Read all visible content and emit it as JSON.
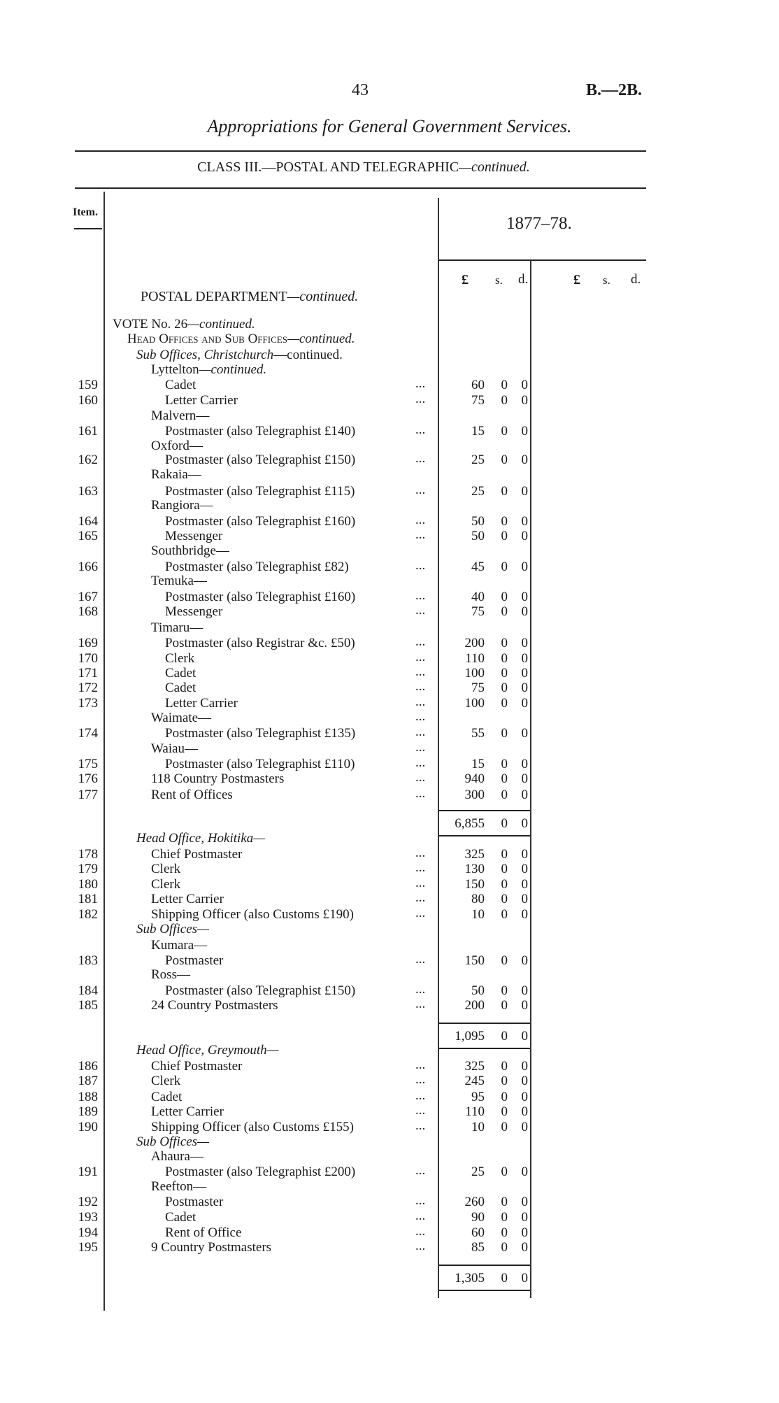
{
  "header": {
    "page_number": "43",
    "doc_ref": "B.—2B.",
    "title": "Appropriations for General Government Services.",
    "class_title": "CLASS III.—POSTAL AND TELEGRAPHIC",
    "class_suffix": "—continued."
  },
  "table": {
    "item_header": "Item.",
    "year": "1877–78.",
    "currency_headers": [
      "£",
      "s.",
      "d.",
      "£",
      "s.",
      "d."
    ],
    "department": "POSTAL DEPARTMENT",
    "department_suffix": "—continued.",
    "rows": [
      {
        "level": 0,
        "parts": [
          {
            "t": "VOTE No. 26"
          },
          {
            "t": "—continued.",
            "s": "it"
          }
        ]
      },
      {
        "level": 1,
        "parts": [
          {
            "t": "Head Offices and Sub Offices",
            "s": "sc"
          },
          {
            "t": "—continued.",
            "s": "it"
          }
        ]
      },
      {
        "level": 2,
        "parts": [
          {
            "t": "Sub Offices, Christchurch",
            "s": "it"
          },
          {
            "t": "—continued."
          }
        ]
      },
      {
        "level": 3,
        "parts": [
          {
            "t": "Lyttelton"
          },
          {
            "t": "—continued.",
            "s": "it"
          }
        ]
      },
      {
        "item": "159",
        "level": 4,
        "parts": [
          {
            "t": "Cadet"
          }
        ],
        "dots": "...",
        "pounds": "60",
        "s": "0",
        "d": "0"
      },
      {
        "item": "160",
        "level": 4,
        "parts": [
          {
            "t": "Letter Carrier"
          }
        ],
        "dots": "...",
        "pounds": "75",
        "s": "0",
        "d": "0"
      },
      {
        "level": 3,
        "parts": [
          {
            "t": "Malvern—"
          }
        ]
      },
      {
        "item": "161",
        "level": 4,
        "parts": [
          {
            "t": "Postmaster (also Telegraphist £140)"
          }
        ],
        "dots": "...",
        "pounds": "15",
        "s": "0",
        "d": "0"
      },
      {
        "level": 3,
        "parts": [
          {
            "t": "Oxford—"
          }
        ]
      },
      {
        "item": "162",
        "level": 4,
        "parts": [
          {
            "t": "Postmaster (also Telegraphist £150)"
          }
        ],
        "dots": "...",
        "pounds": "25",
        "s": "0",
        "d": "0"
      },
      {
        "level": 3,
        "parts": [
          {
            "t": "Rakaia—"
          }
        ]
      },
      {
        "item": "163",
        "level": 4,
        "parts": [
          {
            "t": "Postmaster (also Telegraphist £115)"
          }
        ],
        "dots": "...",
        "pounds": "25",
        "s": "0",
        "d": "0"
      },
      {
        "level": 3,
        "parts": [
          {
            "t": "Rangiora—"
          }
        ]
      },
      {
        "item": "164",
        "level": 4,
        "parts": [
          {
            "t": "Postmaster (also Telegraphist £160)"
          }
        ],
        "dots": "...",
        "pounds": "50",
        "s": "0",
        "d": "0"
      },
      {
        "item": "165",
        "level": 4,
        "parts": [
          {
            "t": "Messenger"
          }
        ],
        "dots": "...",
        "pounds": "50",
        "s": "0",
        "d": "0"
      },
      {
        "level": 3,
        "parts": [
          {
            "t": "Southbridge—"
          }
        ]
      },
      {
        "item": "166",
        "level": 4,
        "parts": [
          {
            "t": "Postmaster (also Telegraphist £82)"
          }
        ],
        "dots": "...",
        "pounds": "45",
        "s": "0",
        "d": "0"
      },
      {
        "level": 3,
        "parts": [
          {
            "t": "Temuka—"
          }
        ]
      },
      {
        "item": "167",
        "level": 4,
        "parts": [
          {
            "t": "Postmaster (also Telegraphist £160)"
          }
        ],
        "dots": "...",
        "pounds": "40",
        "s": "0",
        "d": "0"
      },
      {
        "item": "168",
        "level": 4,
        "parts": [
          {
            "t": "Messenger"
          }
        ],
        "dots": "...",
        "pounds": "75",
        "s": "0",
        "d": "0"
      },
      {
        "level": 3,
        "parts": [
          {
            "t": "Timaru—"
          }
        ]
      },
      {
        "item": "169",
        "level": 4,
        "parts": [
          {
            "t": "Postmaster (also Registrar &c. £50)"
          }
        ],
        "dots": "...",
        "pounds": "200",
        "s": "0",
        "d": "0"
      },
      {
        "item": "170",
        "level": 4,
        "parts": [
          {
            "t": "Clerk"
          }
        ],
        "dots": "...",
        "pounds": "110",
        "s": "0",
        "d": "0"
      },
      {
        "item": "171",
        "level": 4,
        "parts": [
          {
            "t": "Cadet"
          }
        ],
        "dots": "...",
        "pounds": "100",
        "s": "0",
        "d": "0"
      },
      {
        "item": "172",
        "level": 4,
        "parts": [
          {
            "t": "Cadet"
          }
        ],
        "dots": "...",
        "pounds": "75",
        "s": "0",
        "d": "0"
      },
      {
        "item": "173",
        "level": 4,
        "parts": [
          {
            "t": "Letter Carrier"
          }
        ],
        "dots": "...",
        "pounds": "100",
        "s": "0",
        "d": "0"
      },
      {
        "level": 3,
        "parts": [
          {
            "t": "Waimate—"
          }
        ],
        "dots": "..."
      },
      {
        "item": "174",
        "level": 4,
        "parts": [
          {
            "t": "Postmaster (also Telegraphist £135)"
          }
        ],
        "dots": "...",
        "pounds": "55",
        "s": "0",
        "d": "0"
      },
      {
        "level": 3,
        "parts": [
          {
            "t": "Waiau—"
          }
        ],
        "dots": "..."
      },
      {
        "item": "175",
        "level": 4,
        "parts": [
          {
            "t": "Postmaster (also Telegraphist £110)"
          }
        ],
        "dots": "...",
        "pounds": "15",
        "s": "0",
        "d": "0"
      },
      {
        "item": "176",
        "level": 3,
        "parts": [
          {
            "t": "118 Country Postmasters"
          }
        ],
        "dots": "...",
        "pounds": "940",
        "s": "0",
        "d": "0"
      },
      {
        "item": "177",
        "level": 3,
        "parts": [
          {
            "t": "Rent of Offices"
          }
        ],
        "dots": "...",
        "pounds": "300",
        "s": "0",
        "d": "0"
      },
      {
        "total": true,
        "pounds": "6,855",
        "s": "0",
        "d": "0"
      },
      {
        "level": 2,
        "parts": [
          {
            "t": "Head Office, Hokitika—",
            "s": "it"
          }
        ]
      },
      {
        "item": "178",
        "level": 3,
        "parts": [
          {
            "t": "Chief Postmaster"
          }
        ],
        "dots": "...",
        "pounds": "325",
        "s": "0",
        "d": "0"
      },
      {
        "item": "179",
        "level": 3,
        "parts": [
          {
            "t": "Clerk"
          }
        ],
        "dots": "...",
        "pounds": "130",
        "s": "0",
        "d": "0"
      },
      {
        "item": "180",
        "level": 3,
        "parts": [
          {
            "t": "Clerk"
          }
        ],
        "dots": "...",
        "pounds": "150",
        "s": "0",
        "d": "0"
      },
      {
        "item": "181",
        "level": 3,
        "parts": [
          {
            "t": "Letter Carrier"
          }
        ],
        "dots": "...",
        "pounds": "80",
        "s": "0",
        "d": "0"
      },
      {
        "item": "182",
        "level": 3,
        "parts": [
          {
            "t": "Shipping Officer (also Customs £190)"
          }
        ],
        "dots": "...",
        "pounds": "10",
        "s": "0",
        "d": "0"
      },
      {
        "level": 2,
        "parts": [
          {
            "t": "Sub Offices—",
            "s": "it"
          }
        ]
      },
      {
        "level": 3,
        "parts": [
          {
            "t": "Kumara—"
          }
        ]
      },
      {
        "item": "183",
        "level": 4,
        "parts": [
          {
            "t": "Postmaster"
          }
        ],
        "dots": "...",
        "pounds": "150",
        "s": "0",
        "d": "0"
      },
      {
        "level": 3,
        "parts": [
          {
            "t": "Ross—"
          }
        ]
      },
      {
        "item": "184",
        "level": 4,
        "parts": [
          {
            "t": "Postmaster (also Telegraphist £150)"
          }
        ],
        "dots": "...",
        "pounds": "50",
        "s": "0",
        "d": "0"
      },
      {
        "item": "185",
        "level": 3,
        "parts": [
          {
            "t": "24 Country Postmasters"
          }
        ],
        "dots": "...",
        "pounds": "200",
        "s": "0",
        "d": "0"
      },
      {
        "total": true,
        "pounds": "1,095",
        "s": "0",
        "d": "0"
      },
      {
        "level": 2,
        "parts": [
          {
            "t": "Head Office, Greymouth—",
            "s": "it"
          }
        ]
      },
      {
        "item": "186",
        "level": 3,
        "parts": [
          {
            "t": "Chief Postmaster"
          }
        ],
        "dots": "...",
        "pounds": "325",
        "s": "0",
        "d": "0"
      },
      {
        "item": "187",
        "level": 3,
        "parts": [
          {
            "t": "Clerk"
          }
        ],
        "dots": "...",
        "pounds": "245",
        "s": "0",
        "d": "0"
      },
      {
        "item": "188",
        "level": 3,
        "parts": [
          {
            "t": "Cadet"
          }
        ],
        "dots": "...",
        "pounds": "95",
        "s": "0",
        "d": "0"
      },
      {
        "item": "189",
        "level": 3,
        "parts": [
          {
            "t": "Letter Carrier"
          }
        ],
        "dots": "...",
        "pounds": "110",
        "s": "0",
        "d": "0"
      },
      {
        "item": "190",
        "level": 3,
        "parts": [
          {
            "t": "Shipping Officer (also Customs £155)"
          }
        ],
        "dots": "...",
        "pounds": "10",
        "s": "0",
        "d": "0"
      },
      {
        "level": 2,
        "parts": [
          {
            "t": "Sub Offices—",
            "s": "it"
          }
        ]
      },
      {
        "level": 3,
        "parts": [
          {
            "t": "Ahaura—"
          }
        ]
      },
      {
        "item": "191",
        "level": 4,
        "parts": [
          {
            "t": "Postmaster (also Telegraphist £200)"
          }
        ],
        "dots": "...",
        "pounds": "25",
        "s": "0",
        "d": "0"
      },
      {
        "level": 3,
        "parts": [
          {
            "t": "Reefton—"
          }
        ]
      },
      {
        "item": "192",
        "level": 4,
        "parts": [
          {
            "t": "Postmaster"
          }
        ],
        "dots": "...",
        "pounds": "260",
        "s": "0",
        "d": "0"
      },
      {
        "item": "193",
        "level": 4,
        "parts": [
          {
            "t": "Cadet"
          }
        ],
        "dots": "...",
        "pounds": "90",
        "s": "0",
        "d": "0"
      },
      {
        "item": "194",
        "level": 4,
        "parts": [
          {
            "t": "Rent of Office"
          }
        ],
        "dots": "...",
        "pounds": "60",
        "s": "0",
        "d": "0"
      },
      {
        "item": "195",
        "level": 3,
        "parts": [
          {
            "t": "9 Country Postmasters"
          }
        ],
        "dots": "...",
        "pounds": "85",
        "s": "0",
        "d": "0"
      },
      {
        "total": true,
        "pounds": "1,305",
        "s": "0",
        "d": "0"
      }
    ]
  }
}
